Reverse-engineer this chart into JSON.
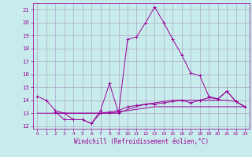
{
  "xlabel": "Windchill (Refroidissement éolien,°C)",
  "background_color": "#c8ecec",
  "grid_color": "#aaaacc",
  "line_color": "#990099",
  "xlim": [
    -0.5,
    23.5
  ],
  "ylim": [
    11.8,
    21.5
  ],
  "yticks": [
    12,
    13,
    14,
    15,
    16,
    17,
    18,
    19,
    20,
    21
  ],
  "xticks": [
    0,
    1,
    2,
    3,
    4,
    5,
    6,
    7,
    8,
    9,
    10,
    11,
    12,
    13,
    14,
    15,
    16,
    17,
    18,
    19,
    20,
    21,
    22,
    23
  ],
  "main_x": [
    0,
    1,
    2,
    3,
    4,
    5,
    6,
    7,
    8,
    9,
    10,
    11,
    12,
    13,
    14,
    15,
    16,
    17,
    18,
    19,
    20,
    21,
    22,
    23
  ],
  "main_y": [
    14.3,
    14.0,
    13.2,
    13.0,
    12.5,
    12.5,
    12.2,
    13.2,
    15.3,
    13.0,
    18.7,
    18.9,
    20.0,
    21.2,
    20.0,
    18.7,
    17.5,
    16.1,
    15.9,
    14.3,
    14.1,
    14.7,
    13.9,
    13.5
  ],
  "line2_x": [
    0,
    1,
    2,
    3,
    4,
    5,
    6,
    7,
    8,
    9,
    10,
    11,
    12,
    13,
    14,
    15,
    16,
    17,
    18,
    19,
    20,
    21,
    22,
    23
  ],
  "line2_y": [
    13.0,
    13.0,
    13.0,
    13.0,
    13.0,
    13.0,
    13.0,
    13.0,
    13.0,
    13.1,
    13.2,
    13.3,
    13.4,
    13.5,
    13.5,
    13.5,
    13.5,
    13.5,
    13.5,
    13.5,
    13.5,
    13.5,
    13.5,
    13.5
  ],
  "line3_x": [
    2,
    3,
    4,
    5,
    6,
    7,
    8,
    9,
    10,
    11,
    12,
    13,
    14,
    15,
    16,
    17,
    18,
    19,
    20,
    21,
    22,
    23
  ],
  "line3_y": [
    13.1,
    12.5,
    12.5,
    12.5,
    12.2,
    13.0,
    13.1,
    13.2,
    13.5,
    13.6,
    13.7,
    13.7,
    13.8,
    13.9,
    14.0,
    13.8,
    14.0,
    14.2,
    14.1,
    14.7,
    13.9,
    13.5
  ],
  "line4_x": [
    2,
    3,
    4,
    5,
    6,
    7,
    8,
    9,
    10,
    11,
    12,
    13,
    14,
    15,
    16,
    17,
    18,
    19,
    20,
    21,
    22,
    23
  ],
  "line4_y": [
    13.0,
    13.0,
    13.0,
    13.0,
    13.0,
    13.0,
    13.0,
    13.0,
    13.3,
    13.5,
    13.7,
    13.8,
    13.9,
    14.0,
    14.0,
    14.0,
    14.0,
    14.0,
    14.0,
    14.0,
    13.9,
    13.5
  ]
}
